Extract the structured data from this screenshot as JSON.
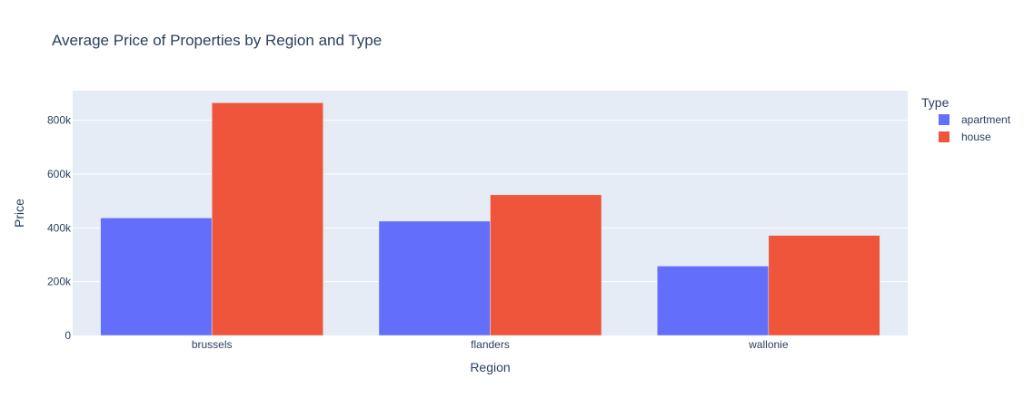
{
  "chart_data": {
    "type": "bar",
    "title": "Average Price of Properties by Region and Type",
    "xlabel": "Region",
    "ylabel": "Price",
    "categories": [
      "brussels",
      "flanders",
      "wallonie"
    ],
    "series": [
      {
        "name": "apartment",
        "color": "#636efa",
        "values": [
          437000,
          425000,
          258000
        ]
      },
      {
        "name": "house",
        "color": "#ef553b",
        "values": [
          865000,
          523000,
          372000
        ]
      }
    ],
    "ylim": [
      0,
      910000
    ],
    "yticks": [
      {
        "value": 0,
        "label": "0"
      },
      {
        "value": 200000,
        "label": "200k"
      },
      {
        "value": 400000,
        "label": "400k"
      },
      {
        "value": 600000,
        "label": "600k"
      },
      {
        "value": 800000,
        "label": "800k"
      }
    ],
    "legend": {
      "title": "Type",
      "position": "right"
    },
    "grid": true,
    "plot_background": "#e5ecf6"
  }
}
